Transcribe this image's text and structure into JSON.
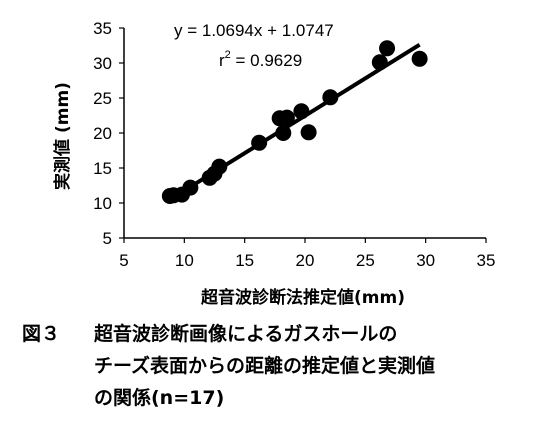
{
  "chart_data": {
    "type": "scatter",
    "xlabel": "超音波診断法推定値(mm)",
    "ylabel": "実測値 (mm)",
    "xlim": [
      5,
      35
    ],
    "ylim": [
      5,
      35
    ],
    "xticks": [
      5,
      10,
      15,
      20,
      25,
      30,
      35
    ],
    "yticks": [
      5,
      10,
      15,
      20,
      25,
      30,
      35
    ],
    "grid": false,
    "points": [
      {
        "x": 8.8,
        "y": 11.0
      },
      {
        "x": 9.1,
        "y": 11.1
      },
      {
        "x": 9.8,
        "y": 11.2
      },
      {
        "x": 10.5,
        "y": 12.2
      },
      {
        "x": 12.1,
        "y": 13.6
      },
      {
        "x": 12.5,
        "y": 14.2
      },
      {
        "x": 12.9,
        "y": 15.2
      },
      {
        "x": 16.2,
        "y": 18.6
      },
      {
        "x": 17.9,
        "y": 22.1
      },
      {
        "x": 18.2,
        "y": 20.0
      },
      {
        "x": 18.5,
        "y": 22.2
      },
      {
        "x": 19.7,
        "y": 23.1
      },
      {
        "x": 20.3,
        "y": 20.1
      },
      {
        "x": 22.1,
        "y": 25.1
      },
      {
        "x": 26.2,
        "y": 30.1
      },
      {
        "x": 26.8,
        "y": 32.1
      },
      {
        "x": 29.5,
        "y": 30.6
      }
    ],
    "regression": {
      "slope": 1.0694,
      "intercept": 1.0747,
      "x_range": [
        8.8,
        29.5
      ]
    },
    "equation_text": "y = 1.0694x + 1.0747",
    "r2_text": "r",
    "r2_value_text": " = 0.9629",
    "r2_superscript": "2",
    "marker_color": "#000000"
  },
  "caption": {
    "figure_label": "図３",
    "line1": "超音波診断画像によるガスホールの",
    "line2": "チーズ表面からの距離の推定値と実測値",
    "line3": "の関係(n=17)"
  }
}
